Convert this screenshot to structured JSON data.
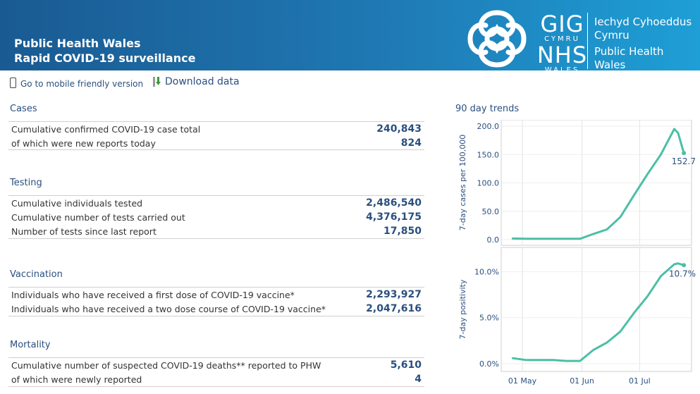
{
  "header": {
    "title_line1": "Public Health Wales",
    "title_line2": "Rapid COVID-19 surveillance",
    "logo": {
      "gig": "GIG",
      "cymru": "CYMRU",
      "nhs": "NHS",
      "wales": "WALES",
      "right_line1": "Iechyd Cyhoeddus",
      "right_line2": "Cymru",
      "right_line3": "Public Health",
      "right_line4": "Wales"
    }
  },
  "toolbar": {
    "mobile_label": "Go to mobile friendly version",
    "download_label": "Download data"
  },
  "sections": {
    "cases": {
      "title": "Cases",
      "rows": [
        {
          "label": "Cumulative confirmed COVID-19 case total",
          "value": "240,843"
        },
        {
          "label": "of which were new reports today",
          "value": "824"
        }
      ]
    },
    "testing": {
      "title": "Testing",
      "rows": [
        {
          "label": "Cumulative individuals tested",
          "value": "2,486,540"
        },
        {
          "label": "Cumulative number of tests carried out",
          "value": "4,376,175"
        },
        {
          "label": "Number of tests since last report",
          "value": "17,850"
        }
      ]
    },
    "vaccination": {
      "title": "Vaccination",
      "rows": [
        {
          "label": "Individuals who have received a first dose of COVID-19 vaccine*",
          "value": "2,293,927"
        },
        {
          "label": "Individuals who have received a two dose course of COVID-19 vaccine*",
          "value": "2,047,616"
        }
      ]
    },
    "mortality": {
      "title": "Mortality",
      "rows": [
        {
          "label": "Cumulative number of suspected COVID-19 deaths** reported to PHW",
          "value": "5,610"
        },
        {
          "label": "of which were newly reported",
          "value": "4"
        }
      ]
    }
  },
  "trends": {
    "title": "90 day trends"
  },
  "colors": {
    "header_dark": "#1a5a92",
    "header_light": "#1e9fd6",
    "accent_text": "#2a4f7f",
    "trend_line": "#4cbfa6"
  },
  "chart_data": [
    {
      "type": "line",
      "title": "",
      "xlabel": "",
      "ylabel": "7-day cases per 100,000",
      "x_ticks": [
        "01 May",
        "01 Jun",
        "01 Jul"
      ],
      "y_ticks": [
        "0.0",
        "50.0",
        "100.0",
        "150.0",
        "200.0"
      ],
      "ylim": [
        0,
        200
      ],
      "end_label": "152.7",
      "x": [
        "2021-04-26",
        "2021-05-03",
        "2021-05-10",
        "2021-05-17",
        "2021-05-24",
        "2021-05-31",
        "2021-06-07",
        "2021-06-14",
        "2021-06-21",
        "2021-06-28",
        "2021-07-05",
        "2021-07-12",
        "2021-07-19",
        "2021-07-21",
        "2021-07-24"
      ],
      "values": [
        2,
        1.5,
        1.5,
        1.5,
        1.5,
        1.5,
        10,
        18,
        40,
        78,
        115,
        150,
        195,
        188,
        152.7
      ]
    },
    {
      "type": "line",
      "title": "",
      "xlabel": "",
      "ylabel": "7-day positivity",
      "x_ticks": [
        "01 May",
        "01 Jun",
        "01 Jul"
      ],
      "y_ticks": [
        "0.0%",
        "5.0%",
        "10.0%"
      ],
      "ylim": [
        0,
        11
      ],
      "end_label": "10.7%",
      "x": [
        "2021-04-26",
        "2021-05-03",
        "2021-05-10",
        "2021-05-17",
        "2021-05-24",
        "2021-05-31",
        "2021-06-07",
        "2021-06-14",
        "2021-06-21",
        "2021-06-28",
        "2021-07-05",
        "2021-07-12",
        "2021-07-19",
        "2021-07-21",
        "2021-07-24"
      ],
      "values": [
        0.6,
        0.4,
        0.4,
        0.4,
        0.3,
        0.3,
        1.5,
        2.3,
        3.5,
        5.5,
        7.3,
        9.5,
        10.8,
        10.9,
        10.7
      ]
    }
  ]
}
